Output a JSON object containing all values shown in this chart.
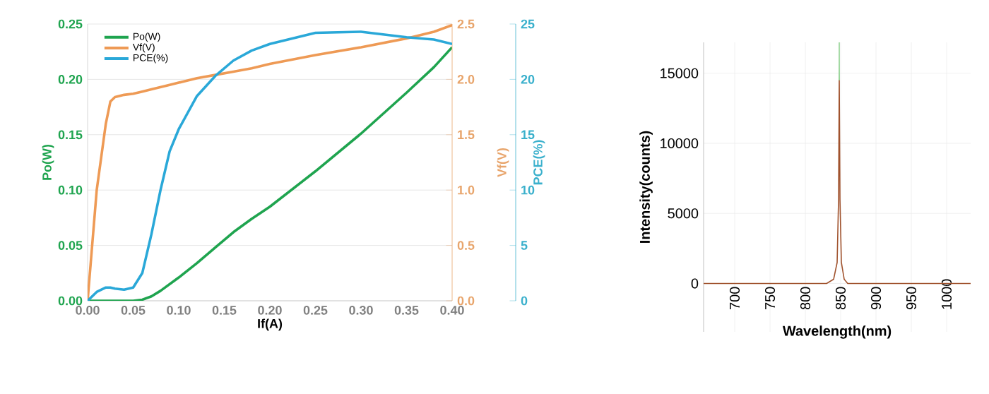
{
  "chart_data": [
    {
      "type": "line",
      "xlabel": "If(A)",
      "ylabel": "Po(W)",
      "y2label": "Vf(V)",
      "y3label": "PCE(%)",
      "x": [
        0,
        0.01,
        0.02,
        0.025,
        0.03,
        0.04,
        0.05,
        0.06,
        0.07,
        0.08,
        0.09,
        0.1,
        0.12,
        0.14,
        0.16,
        0.18,
        0.2,
        0.25,
        0.3,
        0.35,
        0.38,
        0.4
      ],
      "series": [
        {
          "name": "Po(W)",
          "color": "#1fa44f",
          "values": [
            0,
            0,
            0,
            0,
            0,
            0,
            0,
            0.001,
            0.004,
            0.009,
            0.015,
            0.021,
            0.034,
            0.048,
            0.062,
            0.074,
            0.085,
            0.117,
            0.151,
            0.188,
            0.211,
            0.229
          ]
        },
        {
          "name": "Vf(V)",
          "color": "#ee9a55",
          "axis": "y2",
          "values": [
            0,
            1.0,
            1.6,
            1.8,
            1.84,
            1.86,
            1.87,
            1.89,
            1.91,
            1.93,
            1.95,
            1.97,
            2.01,
            2.04,
            2.07,
            2.1,
            2.14,
            2.22,
            2.29,
            2.37,
            2.43,
            2.49
          ]
        },
        {
          "name": "PCE(%)",
          "color": "#2aa8d8",
          "axis": "y3",
          "values": [
            0,
            0.8,
            1.2,
            1.2,
            1.1,
            1.0,
            1.2,
            2.5,
            6,
            10,
            13.5,
            15.5,
            18.5,
            20.3,
            21.7,
            22.6,
            23.2,
            24.2,
            24.3,
            23.8,
            23.6,
            23.2
          ]
        }
      ],
      "xlim": [
        0,
        0.4
      ],
      "xticks": [
        {
          "value": 0,
          "label": "0.00"
        },
        {
          "value": 0.05,
          "label": "0.05"
        },
        {
          "value": 0.1,
          "label": "0.10"
        },
        {
          "value": 0.15,
          "label": "0.15"
        },
        {
          "value": 0.2,
          "label": "0.20"
        },
        {
          "value": 0.25,
          "label": "0.25"
        },
        {
          "value": 0.3,
          "label": "0.30"
        },
        {
          "value": 0.35,
          "label": "0.35"
        },
        {
          "value": 0.4,
          "label": "0.40"
        }
      ],
      "ylim": [
        0,
        0.25
      ],
      "yticks": [
        {
          "value": 0,
          "label": "0.00"
        },
        {
          "value": 0.05,
          "label": "0.05"
        },
        {
          "value": 0.1,
          "label": "0.10"
        },
        {
          "value": 0.15,
          "label": "0.15"
        },
        {
          "value": 0.2,
          "label": "0.20"
        },
        {
          "value": 0.25,
          "label": "0.25"
        }
      ],
      "y2lim": [
        0,
        2.5
      ],
      "y2ticks": [
        {
          "value": 0,
          "label": "0.0"
        },
        {
          "value": 0.5,
          "label": "0.5"
        },
        {
          "value": 1,
          "label": "1.0"
        },
        {
          "value": 1.5,
          "label": "1.5"
        },
        {
          "value": 2,
          "label": "2.0"
        },
        {
          "value": 2.5,
          "label": "2.5"
        }
      ],
      "y3lim": [
        0,
        25
      ],
      "y3ticks": [
        0,
        5,
        10,
        15,
        20,
        25
      ],
      "grid": "y",
      "legend": "top left"
    },
    {
      "type": "line",
      "xlabel": "Wavelength(nm)",
      "ylabel": "Intensity(counts)",
      "series": [
        {
          "color": "#a0522d",
          "x": [
            656,
            700,
            750,
            800,
            830,
            840,
            845,
            847,
            848,
            849,
            851,
            855,
            860,
            900,
            950,
            1000,
            1034
          ],
          "values": [
            0,
            0,
            0,
            0,
            0,
            300,
            1500,
            6000,
            14500,
            6000,
            1500,
            300,
            0,
            0,
            0,
            0,
            0
          ]
        },
        {
          "color": "#8fd18f",
          "x": [
            847.6,
            848,
            848.4
          ],
          "values": [
            14500,
            17200,
            14500
          ]
        }
      ],
      "xlim": [
        656,
        1034
      ],
      "xticks": [
        700,
        750,
        800,
        850,
        900,
        950,
        1000
      ],
      "ylim": [
        -3450,
        17200
      ],
      "yticks": [
        0,
        5000,
        10000,
        15000
      ],
      "grid": true
    }
  ]
}
